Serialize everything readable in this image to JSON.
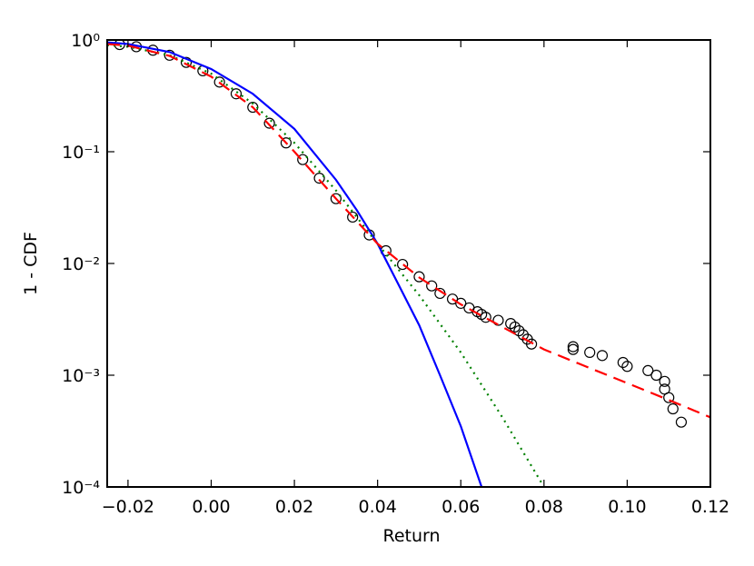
{
  "chart_data": {
    "type": "line",
    "xlabel": "Return",
    "ylabel": "1 - CDF",
    "xlim": [
      -0.025,
      0.12
    ],
    "ylim": [
      0.0001,
      1
    ],
    "yscale": "log",
    "xticks": [
      {
        "value": -0.02,
        "label": "−0.02"
      },
      {
        "value": 0,
        "label": "0.00"
      },
      {
        "value": 0.02,
        "label": "0.02"
      },
      {
        "value": 0.04,
        "label": "0.04"
      },
      {
        "value": 0.06,
        "label": "0.06"
      },
      {
        "value": 0.08,
        "label": "0.08"
      },
      {
        "value": 0.1,
        "label": "0.10"
      },
      {
        "value": 0.12,
        "label": "0.12"
      }
    ],
    "yticks": [
      {
        "value": 0.0001,
        "label": "10⁻⁴"
      },
      {
        "value": 0.001,
        "label": "10⁻³"
      },
      {
        "value": 0.01,
        "label": "10⁻²"
      },
      {
        "value": 0.1,
        "label": "10⁻¹"
      },
      {
        "value": 1,
        "label": "10⁰"
      }
    ],
    "series": [
      {
        "type": "scatter",
        "color": "#000000",
        "x": [
          -0.022,
          -0.018,
          -0.014,
          -0.01,
          -0.006,
          -0.002,
          0.002,
          0.006,
          0.01,
          0.014,
          0.018,
          0.022,
          0.026,
          0.03,
          0.034,
          0.038,
          0.042,
          0.046,
          0.05,
          0.053,
          0.055,
          0.058,
          0.06,
          0.062,
          0.064,
          0.065,
          0.066,
          0.069,
          0.072,
          0.073,
          0.074,
          0.075,
          0.076,
          0.077,
          0.087,
          0.087,
          0.091,
          0.094,
          0.099,
          0.1,
          0.105,
          0.107,
          0.109,
          0.109,
          0.11,
          0.111,
          0.113
        ],
        "values": [
          0.91,
          0.87,
          0.81,
          0.73,
          0.63,
          0.53,
          0.42,
          0.33,
          0.25,
          0.18,
          0.12,
          0.085,
          0.058,
          0.038,
          0.026,
          0.018,
          0.013,
          0.0098,
          0.0076,
          0.0063,
          0.0054,
          0.0048,
          0.0044,
          0.004,
          0.0037,
          0.0035,
          0.0033,
          0.0031,
          0.0029,
          0.0027,
          0.0025,
          0.0023,
          0.0021,
          0.0019,
          0.0018,
          0.0017,
          0.0016,
          0.0015,
          0.0013,
          0.0012,
          0.0011,
          0.001,
          0.00088,
          0.00075,
          0.00063,
          0.0005,
          0.00038
        ]
      },
      {
        "type": "line",
        "linestyle": "solid",
        "color": "#0000ff",
        "x": [
          -0.025,
          -0.02,
          -0.01,
          0,
          0.01,
          0.02,
          0.03,
          0.035,
          0.04,
          0.045,
          0.05,
          0.055,
          0.06,
          0.065
        ],
        "values": [
          0.95,
          0.92,
          0.78,
          0.55,
          0.33,
          0.16,
          0.056,
          0.03,
          0.015,
          0.0065,
          0.0028,
          0.001,
          0.00035,
          0.0001
        ]
      },
      {
        "type": "line",
        "linestyle": "dotted",
        "color": "#008000",
        "x": [
          -0.025,
          -0.02,
          -0.01,
          0,
          0.01,
          0.02,
          0.03,
          0.04,
          0.05,
          0.06,
          0.07,
          0.08
        ],
        "values": [
          0.9,
          0.87,
          0.73,
          0.5,
          0.27,
          0.12,
          0.045,
          0.015,
          0.0052,
          0.0016,
          0.00042,
          0.0001
        ]
      },
      {
        "type": "line",
        "linestyle": "dashed",
        "color": "#ff0000",
        "x": [
          -0.025,
          -0.02,
          -0.01,
          0,
          0.01,
          0.02,
          0.03,
          0.04,
          0.05,
          0.06,
          0.07,
          0.08,
          0.09,
          0.1,
          0.11,
          0.12
        ],
        "values": [
          0.92,
          0.89,
          0.72,
          0.47,
          0.25,
          0.1,
          0.038,
          0.015,
          0.0075,
          0.0043,
          0.0027,
          0.0017,
          0.0012,
          0.00085,
          0.0006,
          0.00042
        ]
      }
    ]
  }
}
